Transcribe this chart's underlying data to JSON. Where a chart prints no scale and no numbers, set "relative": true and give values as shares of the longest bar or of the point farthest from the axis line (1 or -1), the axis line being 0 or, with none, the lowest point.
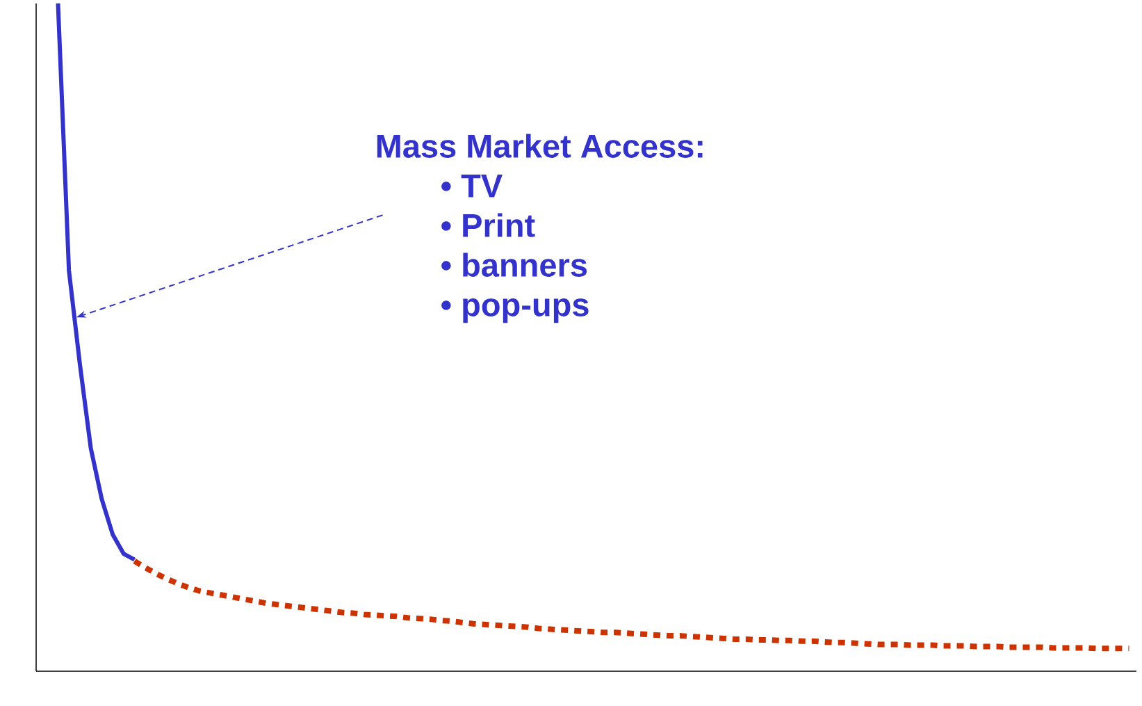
{
  "chart_data": {
    "type": "line",
    "relative": true,
    "marker": "none",
    "annotations": [
      "Mass Market Access:",
      "• TV",
      "• Print",
      "• banners",
      "• pop-ups"
    ],
    "categories": [
      null,
      null,
      null,
      null,
      null,
      null,
      null,
      null,
      null,
      null,
      null,
      null,
      null,
      null,
      null,
      null,
      null,
      null,
      null,
      null,
      null,
      null,
      null,
      null,
      null,
      null,
      null,
      null,
      null,
      null,
      null,
      null,
      null,
      null,
      null,
      null,
      null,
      null,
      null,
      null,
      null,
      null,
      null,
      null,
      null,
      null,
      null,
      null,
      null,
      null,
      null,
      null,
      null,
      null,
      null,
      null,
      null,
      null,
      null,
      null,
      null,
      null,
      null,
      null,
      null,
      null,
      null,
      null,
      null,
      null,
      null,
      null,
      null,
      null,
      null,
      null,
      null,
      null,
      null,
      null,
      null,
      null,
      null,
      null,
      null,
      null,
      null,
      null,
      null,
      null,
      null,
      null,
      null,
      null,
      null,
      null,
      null,
      null,
      null
    ],
    "series": [
      {
        "color": "#3333cc",
        "line_style": "solid",
        "values": [
          1.0,
          0.6,
          0.46,
          0.334,
          0.258,
          0.205,
          0.176,
          0.167,
          null,
          null,
          null,
          null,
          null,
          null,
          null,
          null,
          null,
          null,
          null,
          null,
          null,
          null,
          null,
          null,
          null,
          null,
          null,
          null,
          null,
          null,
          null,
          null,
          null,
          null,
          null,
          null,
          null,
          null,
          null,
          null,
          null,
          null,
          null,
          null,
          null,
          null,
          null,
          null,
          null,
          null,
          null,
          null,
          null,
          null,
          null,
          null,
          null,
          null,
          null,
          null,
          null,
          null,
          null,
          null,
          null,
          null,
          null,
          null,
          null,
          null,
          null,
          null,
          null,
          null,
          null,
          null,
          null,
          null,
          null,
          null,
          null,
          null,
          null,
          null,
          null,
          null,
          null,
          null,
          null,
          null,
          null,
          null,
          null,
          null,
          null,
          null,
          null,
          null,
          null
        ]
      },
      {
        "color": "#cc3300",
        "line_style": "dotted",
        "values": [
          null,
          null,
          null,
          null,
          null,
          null,
          null,
          0.165,
          0.155,
          0.146,
          0.138,
          0.131,
          0.125,
          0.12,
          0.117,
          0.114,
          0.111,
          0.108,
          0.105,
          0.102,
          0.1,
          0.098,
          0.096,
          0.094,
          0.092,
          0.09,
          0.088,
          0.087,
          0.085,
          0.084,
          0.083,
          0.082,
          0.08,
          0.079,
          0.078,
          0.076,
          0.075,
          0.073,
          0.071,
          0.07,
          0.069,
          0.068,
          0.067,
          0.066,
          0.064,
          0.063,
          0.062,
          0.061,
          0.06,
          0.059,
          0.058,
          0.058,
          0.057,
          0.056,
          0.055,
          0.054,
          0.053,
          0.053,
          0.052,
          0.051,
          0.05,
          0.049,
          0.048,
          0.048,
          0.047,
          0.047,
          0.046,
          0.046,
          0.045,
          0.045,
          0.044,
          0.043,
          0.043,
          0.042,
          0.041,
          0.04,
          0.04,
          0.04,
          0.039,
          0.039,
          0.039,
          0.038,
          0.038,
          0.038,
          0.037,
          0.037,
          0.037,
          0.036,
          0.036,
          0.036,
          0.036,
          0.035,
          0.035,
          0.035,
          0.035,
          0.034,
          0.034,
          0.034,
          0.034
        ]
      }
    ]
  }
}
